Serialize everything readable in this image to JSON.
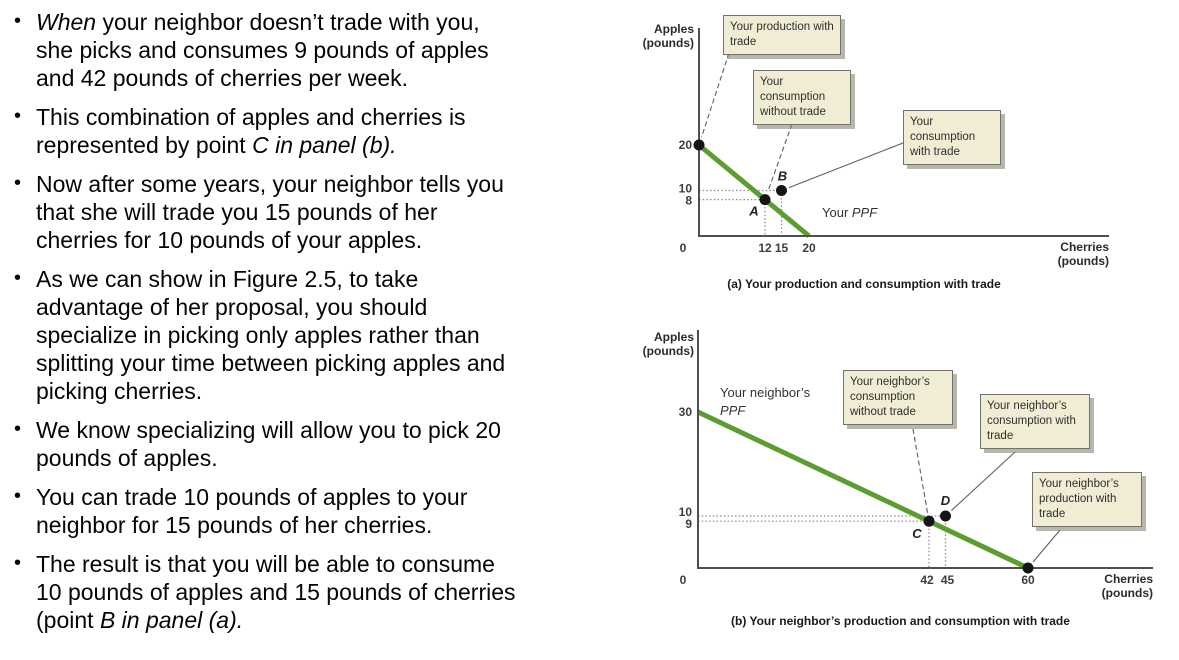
{
  "bullet_char": "•",
  "bullets": [
    {
      "lines": [
        [
          {
            "t": "When",
            "i": 1
          },
          {
            "t": " your neighbor doesn’t trade with you,",
            "i": 0
          }
        ],
        [
          {
            "t": "she picks and consumes 9 pounds of apples",
            "i": 0
          }
        ],
        [
          {
            "t": "and 42 pounds of cherries per week.",
            "i": 0
          }
        ]
      ]
    },
    {
      "lines": [
        [
          {
            "t": "This combination of apples and cherries is",
            "i": 0
          }
        ],
        [
          {
            "t": "represented by point ",
            "i": 0
          },
          {
            "t": "C in panel (b).",
            "i": 1
          }
        ]
      ]
    },
    {
      "lines": [
        [
          {
            "t": "Now after some years, your neighbor tells you",
            "i": 0
          }
        ],
        [
          {
            "t": "that she will trade you 15 pounds of her",
            "i": 0
          }
        ],
        [
          {
            "t": "cherries for 10 pounds of your apples.",
            "i": 0
          }
        ]
      ]
    },
    {
      "lines": [
        [
          {
            "t": "As we can show in Figure 2.5, to take",
            "i": 0
          }
        ],
        [
          {
            "t": "advantage of her proposal, you should",
            "i": 0
          }
        ],
        [
          {
            "t": "specialize in picking only apples rather than",
            "i": 0
          }
        ],
        [
          {
            "t": "splitting your time between picking apples and",
            "i": 0
          }
        ],
        [
          {
            "t": "picking cherries.",
            "i": 0
          }
        ]
      ]
    },
    {
      "lines": [
        [
          {
            "t": "We know specializing will allow you to pick 20",
            "i": 0
          }
        ],
        [
          {
            "t": "pounds of apples.",
            "i": 0
          }
        ]
      ]
    },
    {
      "lines": [
        [
          {
            "t": "You can trade 10 pounds of apples to your",
            "i": 0
          }
        ],
        [
          {
            "t": "neighbor for 15 pounds of her cherries.",
            "i": 0
          }
        ]
      ]
    },
    {
      "lines": [
        [
          {
            "t": "The result is that you will be able to consume",
            "i": 0
          }
        ],
        [
          {
            "t": "10 pounds of apples and 15 pounds of cherries",
            "i": 0
          }
        ],
        [
          {
            "t": "(point ",
            "i": 0
          },
          {
            "t": "B in panel (a).",
            "i": 1
          }
        ]
      ]
    }
  ],
  "chart_data": [
    {
      "panel": "a",
      "type": "line",
      "caption": "(a) Your production and consumption with trade",
      "xlabel": "Cherries (pounds)",
      "ylabel": "Apples (pounds)",
      "xlabel_line1": "Cherries",
      "xlabel_line2": "(pounds)",
      "ylabel_line1": "Apples",
      "ylabel_line2": "(pounds)",
      "xlim": [
        0,
        74
      ],
      "ylim": [
        0,
        45
      ],
      "xticks": [
        0,
        12,
        15,
        20
      ],
      "yticks": [
        20,
        10,
        8
      ],
      "grid": false,
      "ppf": {
        "label_prefix": "Your ",
        "label_italic": "PPF",
        "x": [
          0,
          20
        ],
        "y": [
          20,
          0
        ],
        "color": "#5d9c31"
      },
      "points": [
        {
          "name": "production-with-trade",
          "label": "",
          "x": 0,
          "y": 20,
          "guides": false
        },
        {
          "name": "A",
          "label": "A",
          "x": 12,
          "y": 8,
          "guides": true
        },
        {
          "name": "B",
          "label": "B",
          "x": 15,
          "y": 10,
          "guides": true
        }
      ],
      "callouts": [
        {
          "text": "Your production with trade",
          "points_to": "production-with-trade"
        },
        {
          "text": "Your consumption without trade",
          "points_to": "A"
        },
        {
          "text": "Your consumption with trade",
          "points_to": "B"
        }
      ]
    },
    {
      "panel": "b",
      "type": "line",
      "caption": "(b) Your neighbor’s production and consumption with trade",
      "xlabel": "Cherries (pounds)",
      "ylabel": "Apples (pounds)",
      "xlabel_line1": "Cherries",
      "xlabel_line2": "(pounds)",
      "ylabel_line1": "Apples",
      "ylabel_line2": "(pounds)",
      "xlim": [
        0,
        83
      ],
      "ylim": [
        0,
        46
      ],
      "xticks": [
        0,
        42,
        45,
        60
      ],
      "yticks": [
        30,
        10,
        9
      ],
      "grid": false,
      "ppf": {
        "label_prefix": "Your neighbor’s",
        "label_italic": "PPF",
        "x": [
          0,
          60
        ],
        "y": [
          30,
          0
        ],
        "color": "#5d9c31"
      },
      "points": [
        {
          "name": "C",
          "label": "C",
          "x": 42,
          "y": 9,
          "guides": true
        },
        {
          "name": "D",
          "label": "D",
          "x": 45,
          "y": 10,
          "guides": true
        },
        {
          "name": "production-with-trade",
          "label": "",
          "x": 60,
          "y": 0,
          "guides": false
        }
      ],
      "callouts": [
        {
          "text": "Your neighbor’s consumption without trade",
          "points_to": "C"
        },
        {
          "text": "Your neighbor’s consumption with trade",
          "points_to": "D"
        },
        {
          "text": "Your neighbor’s production with trade",
          "points_to": "production-with-trade"
        }
      ]
    }
  ]
}
